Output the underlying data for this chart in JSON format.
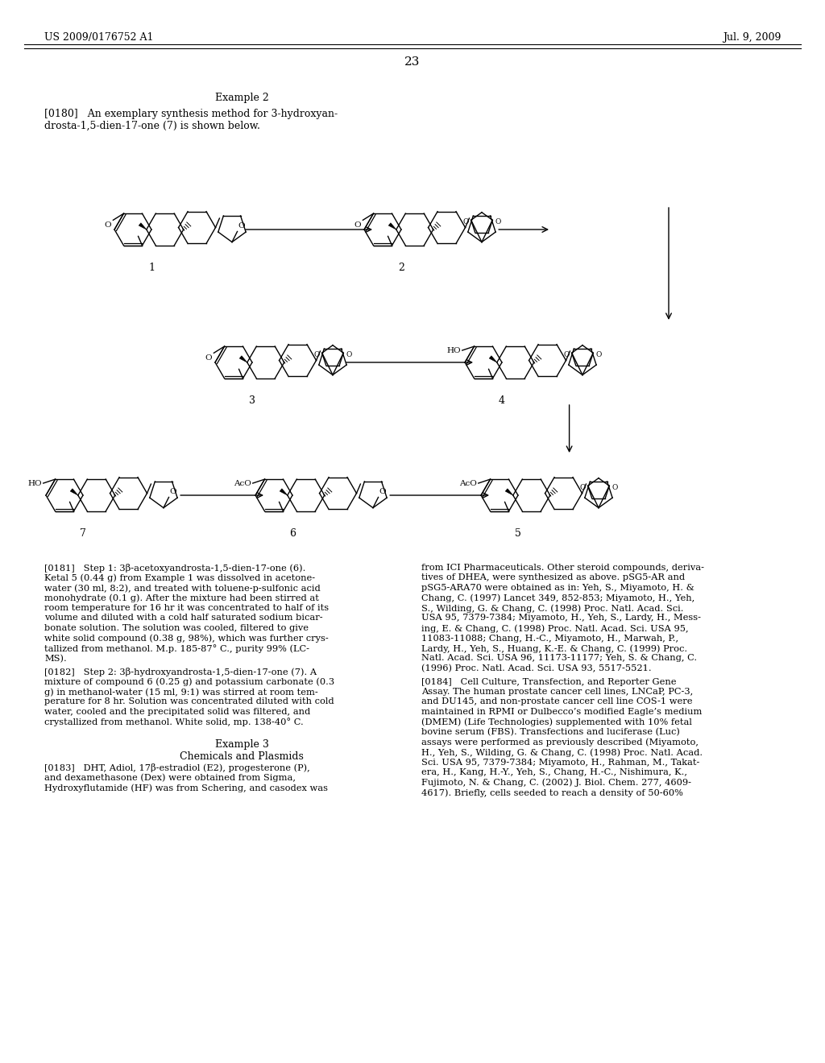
{
  "page_header_left": "US 2009/0176752 A1",
  "page_header_right": "Jul. 9, 2009",
  "page_number": "23",
  "example_title": "Example 2",
  "intro_line1": "[0180]   An exemplary synthesis method for 3-hydroxyan-",
  "intro_line2": "drosta-1,5-dien-17-one (7) is shown below.",
  "para_181_lines": [
    "[0181]   Step 1: 3β-acetoxyandrosta-1,5-dien-17-one (6).",
    "Ketal 5 (0.44 g) from Example 1 was dissolved in acetone-",
    "water (30 ml, 8:2), and treated with toluene-p-sulfonic acid",
    "monohydrate (0.1 g). After the mixture had been stirred at",
    "room temperature for 16 hr it was concentrated to half of its",
    "volume and diluted with a cold half saturated sodium bicar-",
    "bonate solution. The solution was cooled, filtered to give",
    "white solid compound (0.38 g, 98%), which was further crys-",
    "tallized from methanol. M.p. 185-87° C., purity 99% (LC-",
    "MS)."
  ],
  "para_182_lines": [
    "[0182]   Step 2: 3β-hydroxyandrosta-1,5-dien-17-one (7). A",
    "mixture of compound 6 (0.25 g) and potassium carbonate (0.3",
    "g) in methanol-water (15 ml, 9:1) was stirred at room tem-",
    "perature for 8 hr. Solution was concentrated diluted with cold",
    "water, cooled and the precipitated solid was filtered, and",
    "crystallized from methanol. White solid, mp. 138-40° C."
  ],
  "example3_title": "Example 3",
  "chemicals_title": "Chemicals and Plasmids",
  "para_183_lines": [
    "[0183]   DHT, Adiol, 17β-estradiol (E2), progesterone (P),",
    "and dexamethasone (Dex) were obtained from Sigma,",
    "Hydroxyflutamide (HF) was from Schering, and casodex was"
  ],
  "right_col_lines": [
    "from ICI Pharmaceuticals. Other steroid compounds, deriva-",
    "tives of DHEA, were synthesized as above. pSG5-AR and",
    "pSG5-ARA70 were obtained as in: Yeh, S., Miyamoto, H. &",
    "Chang, C. (1997) Lancet 349, 852-853; Miyamoto, H., Yeh,",
    "S., Wilding, G. & Chang, C. (1998) Proc. Natl. Acad. Sci.",
    "USA 95, 7379-7384; Miyamoto, H., Yeh, S., Lardy, H., Mess-",
    "ing, E. & Chang, C. (1998) Proc. Natl. Acad. Sci. USA 95,",
    "11083-11088; Chang, H.-C., Miyamoto, H., Marwah, P.,",
    "Lardy, H., Yeh, S., Huang, K.-E. & Chang, C. (1999) Proc.",
    "Natl. Acad. Sci. USA 96, 11173-11177; Yeh, S. & Chang, C.",
    "(1996) Proc. Natl. Acad. Sci. USA 93, 5517-5521."
  ],
  "right_col2_lines": [
    "[0184]   Cell Culture, Transfection, and Reporter Gene",
    "Assay. The human prostate cancer cell lines, LNCaP, PC-3,",
    "and DU145, and non-prostate cancer cell line COS-1 were",
    "maintained in RPMI or Dulbecco’s modified Eagle’s medium",
    "(DMEM) (Life Technologies) supplemented with 10% fetal",
    "bovine serum (FBS). Transfections and luciferase (Luc)",
    "assays were performed as previously described (Miyamoto,",
    "H., Yeh, S., Wilding, G. & Chang, C. (1998) Proc. Natl. Acad.",
    "Sci. USA 95, 7379-7384; Miyamoto, H., Rahman, M., Takat-",
    "era, H., Kang, H.-Y., Yeh, S., Chang, H.-C., Nishimura, K.,",
    "Fujimoto, N. & Chang, C. (2002) J. Biol. Chem. 277, 4609-",
    "4617). Briefly, cells seeded to reach a density of 50-60%"
  ],
  "bg_color": "#ffffff",
  "text_color": "#000000"
}
